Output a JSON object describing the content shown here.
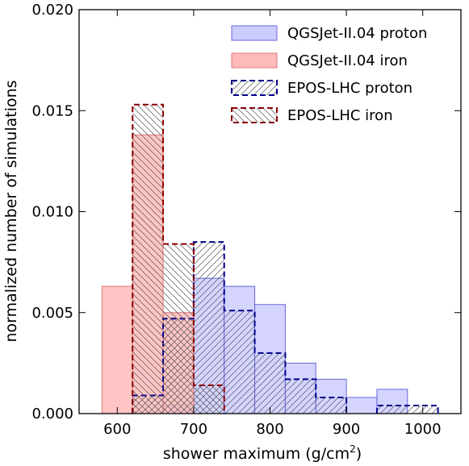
{
  "chart_data": {
    "type": "histogram",
    "title": "",
    "xlabel_text": "shower maximum (g/cm",
    "xlabel_sup": "2",
    "xlabel_close": ")",
    "ylabel": "normalized number of simulations",
    "xlim": [
      550,
      1050
    ],
    "ylim": [
      0,
      0.02
    ],
    "x_ticks": [
      600,
      700,
      800,
      900,
      1000
    ],
    "x_tick_labels": [
      "600",
      "700",
      "800",
      "900",
      "1000"
    ],
    "y_ticks": [
      0,
      0.005,
      0.01,
      0.015,
      0.02
    ],
    "y_tick_labels": [
      "0.000",
      "0.005",
      "0.010",
      "0.015",
      "0.020"
    ],
    "bin_edges": [
      580,
      620,
      660,
      700,
      740,
      780,
      820,
      860,
      900,
      940,
      980,
      1020
    ],
    "legend_position": "top-right",
    "series": [
      {
        "name": "QGSJet-II.04 proton",
        "style": "filled",
        "color": "#6666dd",
        "fill": "#ccccff",
        "values": [
          0,
          0,
          0.0004,
          0.0067,
          0.0063,
          0.0054,
          0.0025,
          0.0017,
          0.0008,
          0.0012,
          0,
          0
        ]
      },
      {
        "name": "QGSJet-II.04 iron",
        "style": "filled",
        "color": "#dd7777",
        "fill": "#ffbbbb",
        "values": [
          0.0063,
          0.0138,
          0.005,
          0,
          0,
          0,
          0,
          0,
          0,
          0,
          0,
          0
        ]
      },
      {
        "name": "EPOS-LHC proton",
        "style": "hatched",
        "hatch": "forward",
        "color": "#00008b",
        "values": [
          0,
          0.0009,
          0.0047,
          0.0085,
          0.0051,
          0.003,
          0.0017,
          0.0008,
          0,
          0.0004,
          0.0004,
          0
        ]
      },
      {
        "name": "EPOS-LHC iron",
        "style": "hatched",
        "hatch": "back",
        "color": "#8b0000",
        "values": [
          0,
          0.0153,
          0.0084,
          0.0014,
          0,
          0,
          0,
          0,
          0,
          0,
          0,
          0
        ]
      }
    ]
  }
}
